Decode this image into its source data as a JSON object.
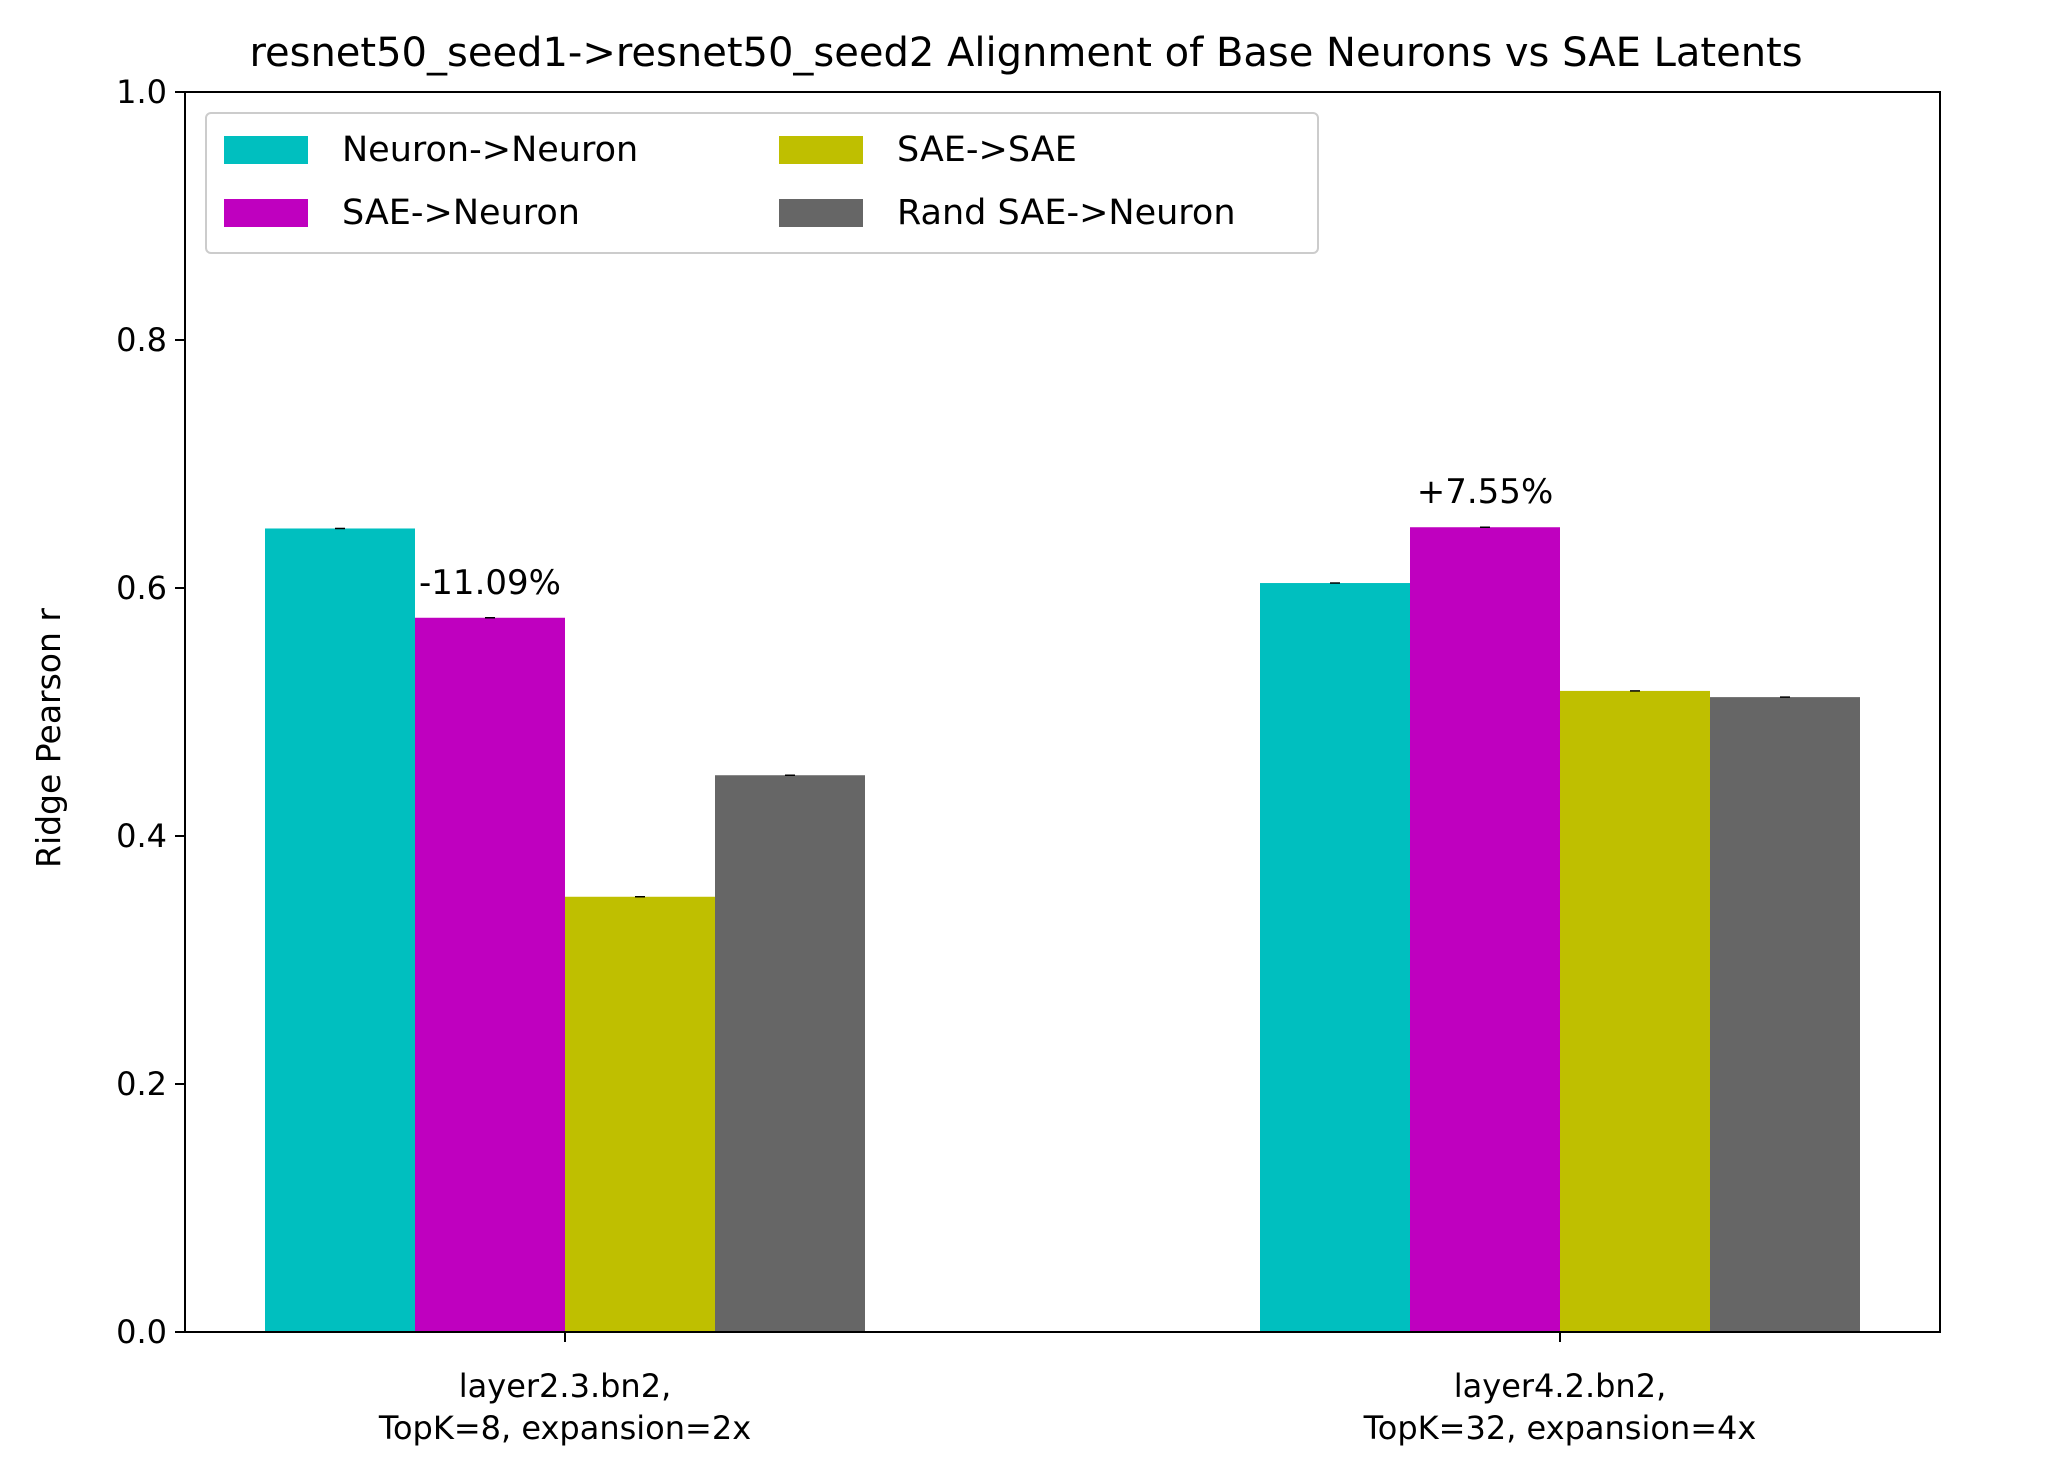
{
  "chart_data": {
    "type": "bar",
    "title": "resnet50_seed1->resnet50_seed2 Alignment of Base Neurons vs SAE Latents",
    "xlabel": "",
    "ylabel": "Ridge Pearson r",
    "ylim": [
      0,
      1.0
    ],
    "yticks": [
      0.0,
      0.2,
      0.4,
      0.6,
      0.8,
      1.0
    ],
    "ytick_labels": [
      "0.0",
      "0.2",
      "0.4",
      "0.6",
      "0.8",
      "1.0"
    ],
    "categories": [
      [
        "layer2.3.bn2,",
        "TopK=8, expansion=2x"
      ],
      [
        "layer4.2.bn2,",
        "TopK=32, expansion=4x"
      ]
    ],
    "series": [
      {
        "name": "Neuron->Neuron",
        "color": "#00bfbf",
        "values": [
          0.648,
          0.604
        ]
      },
      {
        "name": "SAE->Neuron",
        "color": "#bf00bf",
        "values": [
          0.576,
          0.649
        ]
      },
      {
        "name": "SAE->SAE",
        "color": "#bfbf00",
        "values": [
          0.351,
          0.517
        ]
      },
      {
        "name": "Rand SAE->Neuron",
        "color": "#666666",
        "values": [
          0.449,
          0.512
        ]
      }
    ],
    "annotations": [
      {
        "text": "-11.09%",
        "category": 0,
        "series": 1
      },
      {
        "text": "+7.55%",
        "category": 1,
        "series": 1
      }
    ],
    "legend": {
      "position": "top-left",
      "columns": 2
    },
    "grid": false
  }
}
